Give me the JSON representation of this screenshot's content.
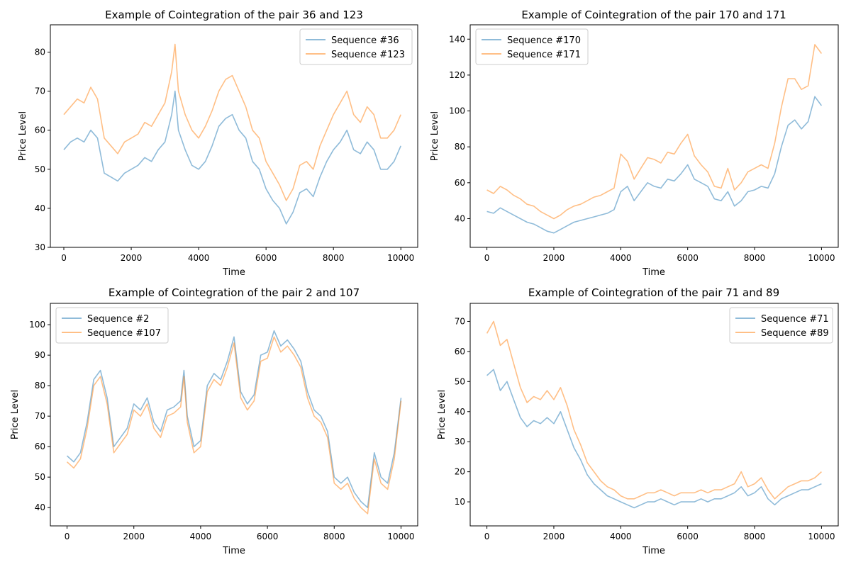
{
  "figure": {
    "background": "#ffffff"
  },
  "chart_data": [
    {
      "type": "line",
      "title": "Example of Cointegration of the pair 36 and 123",
      "xlabel": "Time",
      "ylabel": "Price Level",
      "xlim": [
        -400,
        10500
      ],
      "ylim": [
        30,
        87
      ],
      "xticks": [
        0,
        2000,
        4000,
        6000,
        8000,
        10000
      ],
      "yticks": [
        30,
        40,
        50,
        60,
        70,
        80
      ],
      "legend_position": "top-right",
      "grid": false,
      "series": [
        {
          "name": "Sequence #36",
          "color": "#1f77b4",
          "x": [
            0,
            200,
            400,
            600,
            800,
            1000,
            1200,
            1400,
            1600,
            1800,
            2000,
            2200,
            2400,
            2600,
            2800,
            3000,
            3200,
            3300,
            3400,
            3600,
            3800,
            4000,
            4200,
            4400,
            4600,
            4800,
            5000,
            5200,
            5400,
            5600,
            5800,
            6000,
            6200,
            6400,
            6600,
            6800,
            7000,
            7200,
            7400,
            7600,
            7800,
            8000,
            8200,
            8400,
            8600,
            8800,
            9000,
            9200,
            9400,
            9600,
            9800,
            10000
          ],
          "y": [
            55,
            57,
            58,
            57,
            60,
            58,
            49,
            48,
            47,
            49,
            50,
            51,
            53,
            52,
            55,
            57,
            64,
            70,
            60,
            55,
            51,
            50,
            52,
            56,
            61,
            63,
            64,
            60,
            58,
            52,
            50,
            45,
            42,
            40,
            36,
            39,
            44,
            45,
            43,
            48,
            52,
            55,
            57,
            60,
            55,
            54,
            57,
            55,
            50,
            50,
            52,
            56
          ]
        },
        {
          "name": "Sequence #123",
          "color": "#ff7f0e",
          "x": [
            0,
            200,
            400,
            600,
            800,
            1000,
            1200,
            1400,
            1600,
            1800,
            2000,
            2200,
            2400,
            2600,
            2800,
            3000,
            3200,
            3300,
            3400,
            3600,
            3800,
            4000,
            4200,
            4400,
            4600,
            4800,
            5000,
            5200,
            5400,
            5600,
            5800,
            6000,
            6200,
            6400,
            6600,
            6800,
            7000,
            7200,
            7400,
            7600,
            7800,
            8000,
            8200,
            8400,
            8600,
            8800,
            9000,
            9200,
            9400,
            9600,
            9800,
            10000
          ],
          "y": [
            64,
            66,
            68,
            67,
            71,
            68,
            58,
            56,
            54,
            57,
            58,
            59,
            62,
            61,
            64,
            67,
            75,
            82,
            70,
            64,
            60,
            58,
            61,
            65,
            70,
            73,
            74,
            70,
            66,
            60,
            58,
            52,
            49,
            46,
            42,
            45,
            51,
            52,
            50,
            56,
            60,
            64,
            67,
            70,
            64,
            62,
            66,
            64,
            58,
            58,
            60,
            64
          ]
        }
      ]
    },
    {
      "type": "line",
      "title": "Example of Cointegration of the pair 170 and 171",
      "xlabel": "Time",
      "ylabel": "Price Level",
      "xlim": [
        -500,
        10500
      ],
      "ylim": [
        24,
        148
      ],
      "xticks": [
        0,
        2000,
        4000,
        6000,
        8000,
        10000
      ],
      "yticks": [
        40,
        60,
        80,
        100,
        120,
        140
      ],
      "legend_position": "top-left",
      "grid": false,
      "series": [
        {
          "name": "Sequence #170",
          "color": "#1f77b4",
          "x": [
            0,
            200,
            400,
            600,
            800,
            1000,
            1200,
            1400,
            1600,
            1800,
            2000,
            2200,
            2400,
            2600,
            2800,
            3000,
            3200,
            3400,
            3600,
            3800,
            4000,
            4200,
            4400,
            4600,
            4800,
            5000,
            5200,
            5400,
            5600,
            5800,
            6000,
            6200,
            6400,
            6600,
            6800,
            7000,
            7200,
            7400,
            7600,
            7800,
            8000,
            8200,
            8400,
            8600,
            8800,
            9000,
            9200,
            9400,
            9600,
            9800,
            10000
          ],
          "y": [
            44,
            43,
            46,
            44,
            42,
            40,
            38,
            37,
            35,
            33,
            32,
            34,
            36,
            38,
            39,
            40,
            41,
            42,
            43,
            45,
            55,
            58,
            50,
            55,
            60,
            58,
            57,
            62,
            61,
            65,
            70,
            62,
            60,
            58,
            51,
            50,
            55,
            47,
            50,
            55,
            56,
            58,
            57,
            65,
            80,
            92,
            95,
            90,
            94,
            108,
            103
          ]
        },
        {
          "name": "Sequence #171",
          "color": "#ff7f0e",
          "x": [
            0,
            200,
            400,
            600,
            800,
            1000,
            1200,
            1400,
            1600,
            1800,
            2000,
            2200,
            2400,
            2600,
            2800,
            3000,
            3200,
            3400,
            3600,
            3800,
            4000,
            4200,
            4400,
            4600,
            4800,
            5000,
            5200,
            5400,
            5600,
            5800,
            6000,
            6200,
            6400,
            6600,
            6800,
            7000,
            7200,
            7400,
            7600,
            7800,
            8000,
            8200,
            8400,
            8600,
            8800,
            9000,
            9200,
            9400,
            9600,
            9800,
            10000
          ],
          "y": [
            56,
            54,
            58,
            56,
            53,
            51,
            48,
            47,
            44,
            42,
            40,
            42,
            45,
            47,
            48,
            50,
            52,
            53,
            55,
            57,
            76,
            72,
            62,
            68,
            74,
            73,
            71,
            77,
            76,
            82,
            87,
            75,
            70,
            66,
            58,
            57,
            68,
            56,
            60,
            66,
            68,
            70,
            68,
            82,
            102,
            118,
            118,
            112,
            114,
            137,
            132
          ]
        }
      ]
    },
    {
      "type": "line",
      "title": "Example of Cointegration of the pair 2 and 107",
      "xlabel": "Time",
      "ylabel": "Price Level",
      "xlim": [
        -500,
        10500
      ],
      "ylim": [
        34,
        107
      ],
      "xticks": [
        0,
        2000,
        4000,
        6000,
        8000,
        10000
      ],
      "yticks": [
        40,
        50,
        60,
        70,
        80,
        90,
        100
      ],
      "legend_position": "top-left",
      "grid": false,
      "series": [
        {
          "name": "Sequence #2",
          "color": "#1f77b4",
          "x": [
            0,
            200,
            400,
            600,
            800,
            1000,
            1200,
            1400,
            1600,
            1800,
            2000,
            2200,
            2400,
            2600,
            2800,
            3000,
            3200,
            3400,
            3500,
            3600,
            3800,
            4000,
            4200,
            4400,
            4600,
            4800,
            5000,
            5200,
            5400,
            5600,
            5800,
            6000,
            6200,
            6400,
            6600,
            6800,
            7000,
            7200,
            7400,
            7600,
            7800,
            8000,
            8200,
            8400,
            8600,
            8800,
            9000,
            9200,
            9400,
            9600,
            9800,
            10000
          ],
          "y": [
            57,
            55,
            58,
            68,
            82,
            85,
            76,
            60,
            63,
            66,
            74,
            72,
            76,
            68,
            65,
            72,
            73,
            75,
            85,
            70,
            60,
            62,
            80,
            84,
            82,
            88,
            96,
            78,
            74,
            77,
            90,
            91,
            98,
            93,
            95,
            92,
            88,
            78,
            72,
            70,
            65,
            50,
            48,
            50,
            45,
            42,
            40,
            58,
            50,
            48,
            58,
            76
          ]
        },
        {
          "name": "Sequence #107",
          "color": "#ff7f0e",
          "x": [
            0,
            200,
            400,
            600,
            800,
            1000,
            1200,
            1400,
            1600,
            1800,
            2000,
            2200,
            2400,
            2600,
            2800,
            3000,
            3200,
            3400,
            3500,
            3600,
            3800,
            4000,
            4200,
            4400,
            4600,
            4800,
            5000,
            5200,
            5400,
            5600,
            5800,
            6000,
            6200,
            6400,
            6600,
            6800,
            7000,
            7200,
            7400,
            7600,
            7800,
            8000,
            8200,
            8400,
            8600,
            8800,
            9000,
            9200,
            9400,
            9600,
            9800,
            10000
          ],
          "y": [
            55,
            53,
            56,
            66,
            80,
            83,
            74,
            58,
            61,
            64,
            72,
            70,
            74,
            66,
            63,
            70,
            71,
            73,
            83,
            68,
            58,
            60,
            78,
            82,
            80,
            86,
            94,
            76,
            72,
            75,
            88,
            89,
            96,
            91,
            93,
            90,
            86,
            76,
            70,
            68,
            63,
            48,
            46,
            48,
            43,
            40,
            38,
            56,
            48,
            46,
            56,
            75
          ]
        }
      ]
    },
    {
      "type": "line",
      "title": "Example of Cointegration of the pair 71 and 89",
      "xlabel": "Time",
      "ylabel": "Price Level",
      "xlim": [
        -500,
        10500
      ],
      "ylim": [
        2,
        76
      ],
      "xticks": [
        0,
        2000,
        4000,
        6000,
        8000,
        10000
      ],
      "yticks": [
        10,
        20,
        30,
        40,
        50,
        60,
        70
      ],
      "legend_position": "top-right",
      "grid": false,
      "series": [
        {
          "name": "Sequence #71",
          "color": "#1f77b4",
          "x": [
            0,
            200,
            400,
            600,
            800,
            1000,
            1200,
            1400,
            1600,
            1800,
            2000,
            2200,
            2400,
            2600,
            2800,
            3000,
            3200,
            3400,
            3600,
            3800,
            4000,
            4200,
            4400,
            4600,
            4800,
            5000,
            5200,
            5400,
            5600,
            5800,
            6000,
            6200,
            6400,
            6600,
            6800,
            7000,
            7200,
            7400,
            7600,
            7800,
            8000,
            8200,
            8400,
            8600,
            8800,
            9000,
            9200,
            9400,
            9600,
            9800,
            10000
          ],
          "y": [
            52,
            54,
            47,
            50,
            44,
            38,
            35,
            37,
            36,
            38,
            36,
            40,
            34,
            28,
            24,
            19,
            16,
            14,
            12,
            11,
            10,
            9,
            8,
            9,
            10,
            10,
            11,
            10,
            9,
            10,
            10,
            10,
            11,
            10,
            11,
            11,
            12,
            13,
            15,
            12,
            13,
            15,
            11,
            9,
            11,
            12,
            13,
            14,
            14,
            15,
            16
          ]
        },
        {
          "name": "Sequence #89",
          "color": "#ff7f0e",
          "x": [
            0,
            200,
            400,
            600,
            800,
            1000,
            1200,
            1400,
            1600,
            1800,
            2000,
            2200,
            2400,
            2600,
            2800,
            3000,
            3200,
            3400,
            3600,
            3800,
            4000,
            4200,
            4400,
            4600,
            4800,
            5000,
            5200,
            5400,
            5600,
            5800,
            6000,
            6200,
            6400,
            6600,
            6800,
            7000,
            7200,
            7400,
            7600,
            7800,
            8000,
            8200,
            8400,
            8600,
            8800,
            9000,
            9200,
            9400,
            9600,
            9800,
            10000
          ],
          "y": [
            66,
            70,
            62,
            64,
            56,
            48,
            43,
            45,
            44,
            47,
            44,
            48,
            42,
            34,
            29,
            23,
            20,
            17,
            15,
            14,
            12,
            11,
            11,
            12,
            13,
            13,
            14,
            13,
            12,
            13,
            13,
            13,
            14,
            13,
            14,
            14,
            15,
            16,
            20,
            15,
            16,
            18,
            14,
            11,
            13,
            15,
            16,
            17,
            17,
            18,
            20
          ]
        }
      ]
    }
  ]
}
